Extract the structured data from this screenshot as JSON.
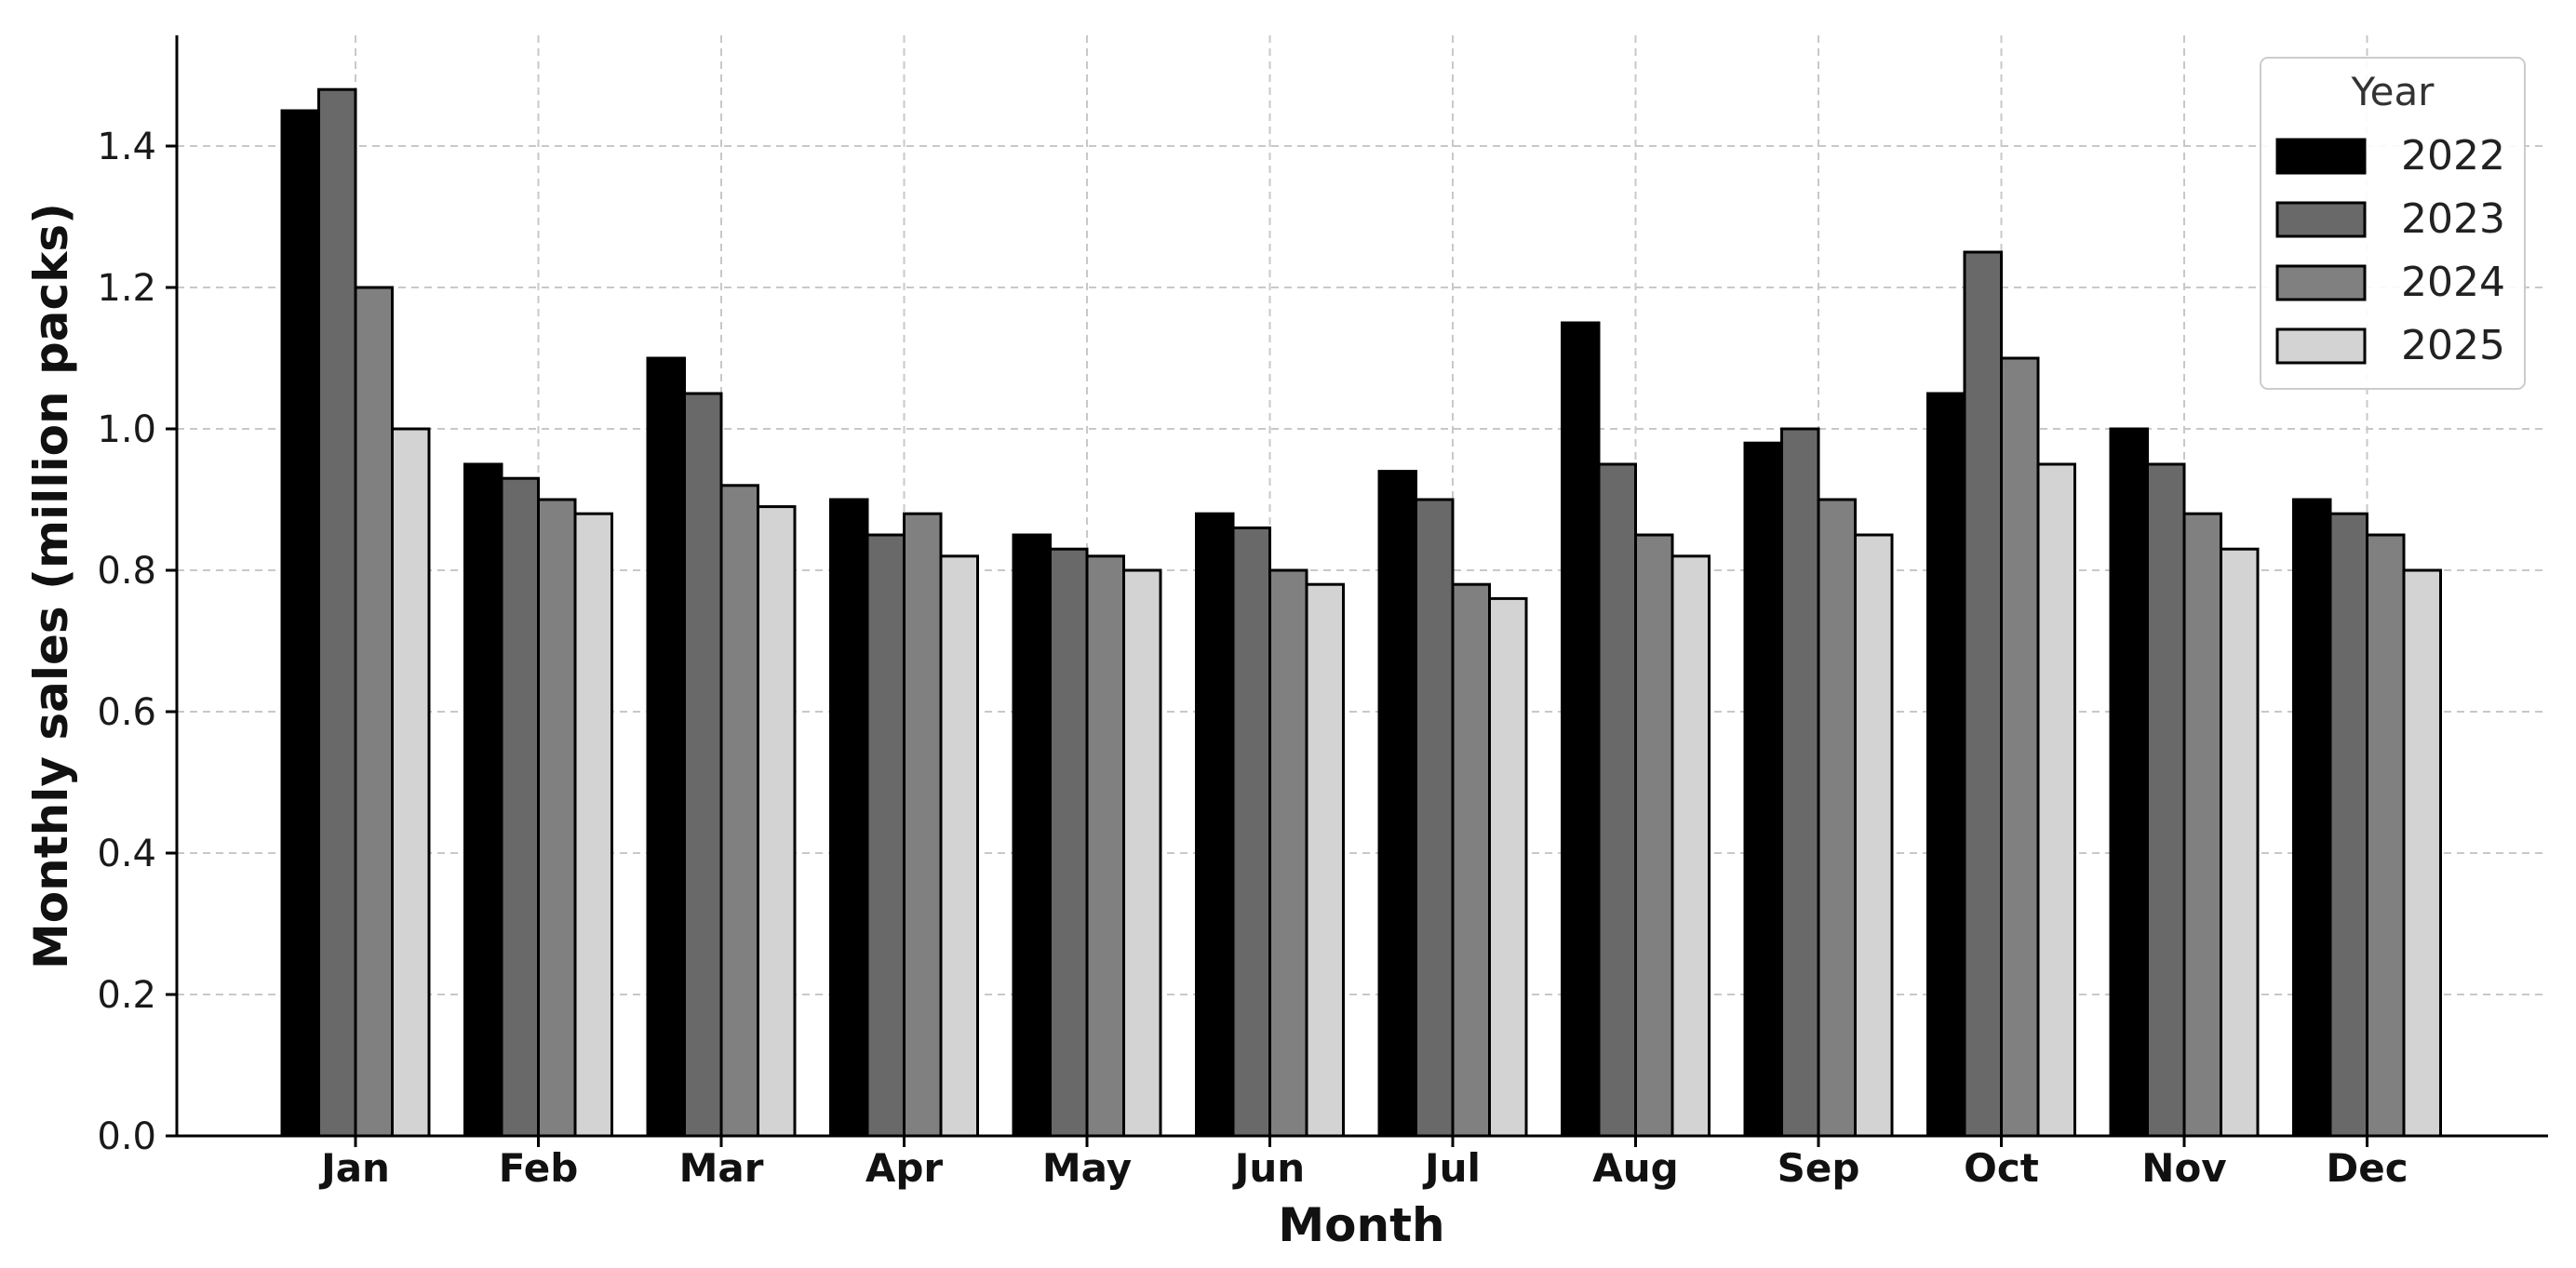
{
  "chart_data": {
    "type": "bar",
    "categories": [
      "Jan",
      "Feb",
      "Mar",
      "Apr",
      "May",
      "Jun",
      "Jul",
      "Aug",
      "Sep",
      "Oct",
      "Nov",
      "Dec"
    ],
    "series": [
      {
        "name": "2022",
        "color": "#000000",
        "values": [
          1.45,
          0.95,
          1.1,
          0.9,
          0.85,
          0.88,
          0.94,
          1.15,
          0.98,
          1.05,
          1.0,
          0.9
        ]
      },
      {
        "name": "2023",
        "color": "#696969",
        "values": [
          1.48,
          0.93,
          1.05,
          0.85,
          0.83,
          0.86,
          0.9,
          0.95,
          1.0,
          1.25,
          0.95,
          0.88
        ]
      },
      {
        "name": "2024",
        "color": "#808080",
        "values": [
          1.2,
          0.9,
          0.92,
          0.88,
          0.82,
          0.8,
          0.78,
          0.85,
          0.9,
          1.1,
          0.88,
          0.85
        ]
      },
      {
        "name": "2025",
        "color": "#d3d3d3",
        "values": [
          1.0,
          0.88,
          0.89,
          0.82,
          0.8,
          0.78,
          0.76,
          0.82,
          0.85,
          0.95,
          0.83,
          0.8
        ]
      }
    ],
    "xlabel": "Month",
    "ylabel": "Monthly sales (million packs)",
    "ylim": [
      0,
      1.55
    ],
    "yticks": [
      "0.0",
      "0.2",
      "0.4",
      "0.6",
      "0.8",
      "1.0",
      "1.2",
      "1.4"
    ],
    "legend_title": "Year",
    "legend_position": "top-right",
    "grid": true
  }
}
